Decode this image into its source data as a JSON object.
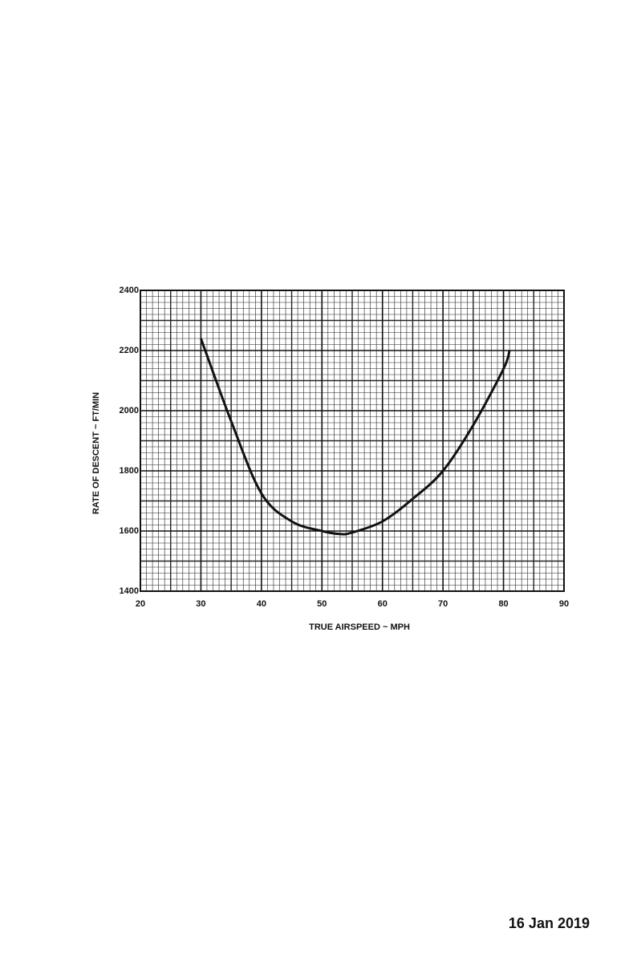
{
  "chart_data": {
    "type": "line",
    "x_label": "TRUE AIRSPEED ~ MPH",
    "y_label": "RATE OF DESCENT ~ FT/MIN",
    "x": [
      30,
      35,
      40,
      45,
      50,
      53,
      55,
      60,
      65,
      70,
      75,
      80,
      81
    ],
    "series": [
      {
        "color": "#111111",
        "values": [
          2240,
          1965,
          1725,
          1632,
          1600,
          1590,
          1595,
          1632,
          1707,
          1800,
          1952,
          2139,
          2200
        ]
      }
    ],
    "xlim": [
      20,
      90
    ],
    "xticks": [
      20,
      30,
      40,
      50,
      60,
      70,
      80,
      90
    ],
    "ylim": [
      1400,
      2400
    ],
    "yticks": [
      1400,
      1600,
      1800,
      2000,
      2200,
      2400
    ],
    "grid": true,
    "minor_divisions_x": 10,
    "minor_divisions_y": 10
  },
  "footer": "16 Jan 2019"
}
